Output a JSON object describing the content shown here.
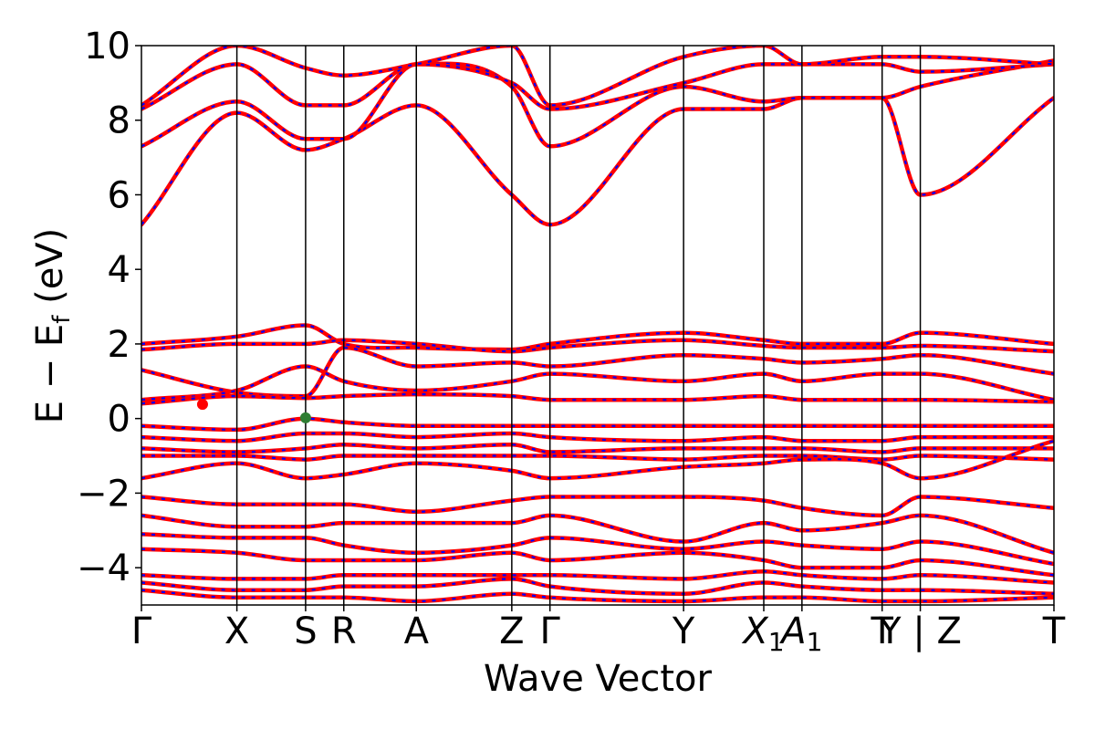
{
  "chart_data": {
    "type": "line",
    "title": "",
    "xlabel": "Wave Vector",
    "ylabel": "E − E",
    "ylabel_sub": "f",
    "ylabel_unit": " (eV)",
    "ylim": [
      -5,
      10
    ],
    "yticks": [
      -4,
      -2,
      0,
      2,
      4,
      6,
      8,
      10
    ],
    "ytick_labels": [
      "−4",
      "−2",
      "0",
      "2",
      "4",
      "6",
      "8",
      "10"
    ],
    "kpath_labels": [
      "Γ",
      "X",
      "S",
      "R",
      "A",
      "Z",
      "Γ",
      "Y",
      "X",
      "A",
      "T",
      "Y | Z",
      "T"
    ],
    "kpath_subscripts": [
      "",
      "",
      "",
      "",
      "",
      "",
      "",
      "",
      "1",
      "1",
      "",
      "",
      ""
    ],
    "kpath_distances": [
      0.0,
      0.25,
      0.43,
      0.53,
      0.72,
      0.97,
      1.07,
      1.42,
      1.63,
      1.73,
      1.94,
      2.04,
      2.39
    ],
    "series": [
      {
        "line_color": "#ff0000",
        "dash_color": "#0000ff"
      }
    ],
    "band_anchor_energies": {
      "conduction": [
        [
          5.2,
          8.2,
          7.2,
          7.5,
          8.4,
          6.0,
          5.2,
          8.3,
          8.3,
          8.6,
          8.6,
          6.0,
          8.6
        ],
        [
          7.3,
          8.5,
          7.5,
          7.5,
          9.5,
          8.9,
          7.3,
          8.9,
          8.5,
          8.6,
          8.6,
          8.9,
          9.6
        ],
        [
          8.3,
          9.5,
          8.4,
          8.4,
          9.5,
          9.0,
          8.3,
          9.0,
          9.5,
          9.5,
          9.5,
          9.3,
          9.5
        ],
        [
          8.4,
          10.0,
          9.4,
          9.2,
          9.5,
          10.0,
          8.4,
          9.7,
          10.0,
          9.5,
          9.7,
          9.7,
          9.5
        ]
      ],
      "valence_top": [
        [
          2.0,
          2.2,
          2.5,
          2.0,
          1.9,
          1.85,
          2.0,
          2.3,
          2.1,
          2.0,
          2.0,
          2.3,
          2.0
        ],
        [
          1.85,
          2.0,
          2.0,
          2.1,
          2.0,
          1.8,
          1.9,
          2.1,
          1.95,
          1.9,
          1.9,
          1.95,
          1.8
        ],
        [
          1.3,
          0.7,
          0.6,
          1.9,
          1.4,
          1.5,
          1.4,
          1.7,
          1.6,
          1.5,
          1.6,
          1.7,
          1.2
        ],
        [
          0.5,
          0.75,
          1.4,
          1.0,
          0.75,
          1.0,
          1.2,
          1.0,
          1.2,
          1.0,
          1.2,
          1.2,
          0.5
        ],
        [
          0.4,
          0.6,
          0.55,
          0.6,
          0.65,
          0.6,
          0.5,
          0.5,
          0.6,
          0.5,
          0.5,
          0.5,
          0.45
        ]
      ],
      "valence_middle": [
        [
          -0.2,
          -0.3,
          0.0,
          -0.1,
          -0.2,
          -0.2,
          -0.2,
          -0.2,
          -0.2,
          -0.2,
          -0.2,
          -0.2,
          -0.2
        ],
        [
          -0.5,
          -0.6,
          -0.4,
          -0.4,
          -0.5,
          -0.4,
          -0.5,
          -0.6,
          -0.5,
          -0.6,
          -0.6,
          -0.5,
          -0.5
        ],
        [
          -0.8,
          -0.9,
          -0.8,
          -0.7,
          -0.8,
          -0.7,
          -0.9,
          -0.8,
          -0.8,
          -0.8,
          -0.9,
          -0.8,
          -0.8
        ],
        [
          -1.0,
          -1.0,
          -1.1,
          -1.0,
          -1.0,
          -1.0,
          -1.0,
          -1.1,
          -1.0,
          -1.0,
          -1.1,
          -1.0,
          -1.1
        ],
        [
          -1.6,
          -1.2,
          -1.6,
          -1.5,
          -1.2,
          -1.4,
          -1.6,
          -1.3,
          -1.2,
          -1.1,
          -1.2,
          -1.6,
          -0.6
        ]
      ],
      "valence_deep": [
        [
          -2.1,
          -2.3,
          -2.3,
          -2.3,
          -2.5,
          -2.2,
          -2.1,
          -2.1,
          -2.2,
          -2.4,
          -2.6,
          -2.1,
          -2.4
        ],
        [
          -2.6,
          -2.9,
          -2.9,
          -2.8,
          -2.8,
          -2.8,
          -2.6,
          -3.3,
          -2.8,
          -3.0,
          -2.8,
          -2.6,
          -3.6
        ],
        [
          -3.1,
          -3.2,
          -3.2,
          -3.4,
          -3.6,
          -3.4,
          -3.2,
          -3.5,
          -3.3,
          -3.4,
          -3.5,
          -3.3,
          -3.9
        ],
        [
          -3.5,
          -3.6,
          -3.8,
          -3.8,
          -3.8,
          -3.6,
          -3.8,
          -3.6,
          -3.8,
          -4.0,
          -4.0,
          -3.8,
          -4.2
        ],
        [
          -4.2,
          -4.3,
          -4.3,
          -4.2,
          -4.2,
          -4.2,
          -4.2,
          -4.3,
          -4.1,
          -4.2,
          -4.3,
          -4.2,
          -4.4
        ],
        [
          -4.4,
          -4.6,
          -4.6,
          -4.5,
          -4.5,
          -4.3,
          -4.5,
          -4.7,
          -4.4,
          -4.5,
          -4.6,
          -4.6,
          -4.7
        ],
        [
          -4.6,
          -4.8,
          -4.8,
          -4.8,
          -4.9,
          -4.7,
          -4.8,
          -4.9,
          -4.8,
          -4.8,
          -4.9,
          -4.9,
          -4.8
        ]
      ]
    },
    "markers": [
      {
        "name": "vbm-marker",
        "x": 0.43,
        "y": 0.02,
        "color": "#2e7d32"
      },
      {
        "name": "cbm-marker",
        "x": 0.16,
        "y": 0.38,
        "color": "#ff0000"
      }
    ]
  }
}
